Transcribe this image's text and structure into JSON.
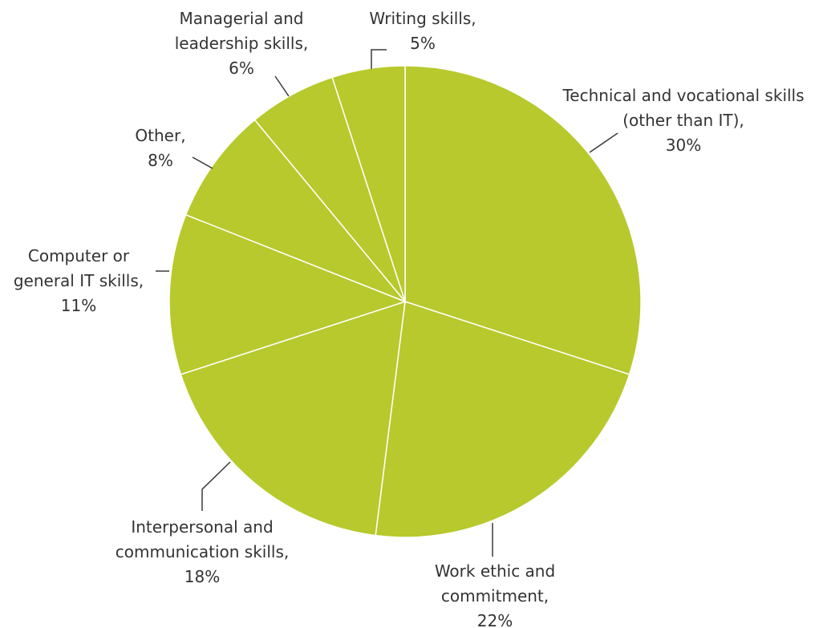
{
  "chart_data": {
    "type": "pie",
    "slice_color": "#b7c92c",
    "separator_color": "#ffffff",
    "text_color": "#333333",
    "start": "12 o'clock",
    "direction": "clockwise",
    "slices": [
      {
        "id": "technical-vocational",
        "category": "Technical and vocational skills (other than IT)",
        "value": 30,
        "label_lines": [
          "Technical and vocational skills",
          "(other than IT),",
          "30%"
        ]
      },
      {
        "id": "work-ethic",
        "category": "Work ethic and commitment",
        "value": 22,
        "label_lines": [
          "Work ethic and",
          "commitment,",
          "22%"
        ]
      },
      {
        "id": "interpersonal",
        "category": "Interpersonal and communication skills",
        "value": 18,
        "label_lines": [
          "Interpersonal and",
          "communication skills,",
          "18%"
        ]
      },
      {
        "id": "computer-it",
        "category": "Computer or general IT skills",
        "value": 11,
        "label_lines": [
          "Computer or",
          "general IT skills,",
          "11%"
        ]
      },
      {
        "id": "other",
        "category": "Other",
        "value": 8,
        "label_lines": [
          "Other,",
          "8%"
        ]
      },
      {
        "id": "managerial",
        "category": "Managerial and leadership skills",
        "value": 6,
        "label_lines": [
          "Managerial and",
          "leadership skills,",
          "6%"
        ]
      },
      {
        "id": "writing",
        "category": "Writing skills",
        "value": 5,
        "label_lines": [
          "Writing skills,",
          "5%"
        ]
      }
    ]
  }
}
